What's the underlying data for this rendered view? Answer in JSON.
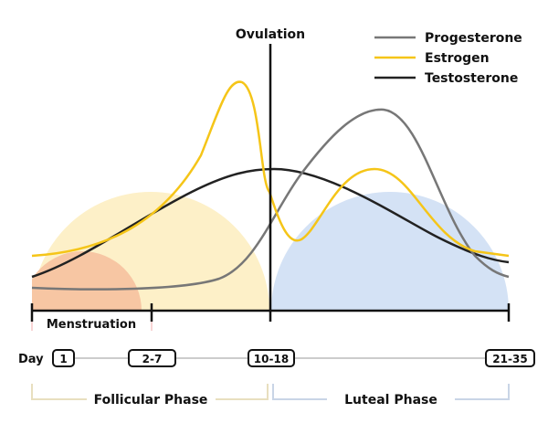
{
  "ovulation_label": "Ovulation",
  "legend": [
    {
      "name": "Progesterone",
      "color": "#777777"
    },
    {
      "name": "Estrogen",
      "color": "#f5c518"
    },
    {
      "name": "Testosterone",
      "color": "#222222"
    }
  ],
  "menstruation_label": "Menstruation",
  "day_label": "Day",
  "days": [
    "1",
    "2-7",
    "10-18",
    "21-35"
  ],
  "phases": [
    {
      "name": "Follicular Phase",
      "color": "#e8dfbf"
    },
    {
      "name": "Luteal Phase",
      "color": "#c9d5e6"
    }
  ],
  "fill_colors": {
    "follicular": "#fdf0c8",
    "menstruation": "#f7c6a3",
    "luteal": "#d4e2f5"
  }
}
